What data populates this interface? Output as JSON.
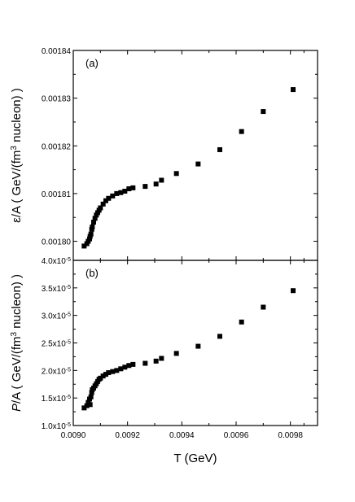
{
  "chart_data": [
    {
      "type": "scatter",
      "panel_label": "(a)",
      "ylabel": "ε/A  ( GeV/(fm3 nucleon) )",
      "ylabel_parts": {
        "sym": "ε",
        "pre": "/A  ( GeV/(fm",
        "sup": "3",
        "post": " nucleon) )"
      },
      "ylim": [
        0.001796,
        0.00184
      ],
      "yticks": [
        0.0018,
        0.00181,
        0.00182,
        0.00183,
        0.00184
      ],
      "ytick_labels": [
        "0.00180",
        "0.00181",
        "0.00182",
        "0.00183",
        "0.00184"
      ],
      "x": [
        0.00904,
        0.00905,
        0.009055,
        0.00906,
        0.009062,
        0.009065,
        0.009068,
        0.00907,
        0.009075,
        0.00908,
        0.009085,
        0.00909,
        0.009095,
        0.0091,
        0.00911,
        0.00912,
        0.00913,
        0.009145,
        0.00916,
        0.009175,
        0.00919,
        0.009205,
        0.00922,
        0.009265,
        0.009305,
        0.009325,
        0.00938,
        0.00946,
        0.00954,
        0.00962,
        0.0097,
        0.00981
      ],
      "y": [
        0.001799,
        0.0017995,
        0.0018,
        0.0018005,
        0.001801,
        0.0018015,
        0.0018025,
        0.001803,
        0.001804,
        0.0018048,
        0.0018055,
        0.001806,
        0.0018065,
        0.001807,
        0.0018078,
        0.0018085,
        0.001809,
        0.0018095,
        0.00181,
        0.0018102,
        0.0018105,
        0.001811,
        0.0018112,
        0.0018115,
        0.001812,
        0.0018128,
        0.0018142,
        0.0018162,
        0.0018192,
        0.001823,
        0.0018272,
        0.0018318
      ]
    },
    {
      "type": "scatter",
      "panel_label": "(b)",
      "ylabel": "P/A  ( GeV/(fm3 nucleon) )",
      "ylabel_parts": {
        "sym": "P",
        "pre": "/A  ( GeV/(fm",
        "sup": "3",
        "post": " nucleon) )"
      },
      "ylim": [
        1e-05,
        4e-05
      ],
      "yticks": [
        1e-05,
        1.5e-05,
        2e-05,
        2.5e-05,
        3e-05,
        3.5e-05,
        4e-05
      ],
      "ytick_labels": [
        {
          "m": "1.0x10",
          "e": "-5"
        },
        {
          "m": "1.5x10",
          "e": "-5"
        },
        {
          "m": "2.0x10",
          "e": "-5"
        },
        {
          "m": "2.5x10",
          "e": "-5"
        },
        {
          "m": "3.0x10",
          "e": "-5"
        },
        {
          "m": "3.5x10",
          "e": "-5"
        },
        {
          "m": "4.0x10",
          "e": "-5"
        }
      ],
      "x": [
        0.00904,
        0.00905,
        0.009055,
        0.00906,
        0.009062,
        0.009065,
        0.009068,
        0.00907,
        0.009075,
        0.00908,
        0.009085,
        0.00909,
        0.009095,
        0.0091,
        0.00911,
        0.00912,
        0.00913,
        0.009145,
        0.00916,
        0.009175,
        0.00919,
        0.009205,
        0.00922,
        0.009265,
        0.009305,
        0.009325,
        0.00938,
        0.00946,
        0.00954,
        0.00962,
        0.0097,
        0.00981
      ],
      "y": [
        1.32e-05,
        1.36e-05,
        1.42e-05,
        1.48e-05,
        1.38e-05,
        1.52e-05,
        1.6e-05,
        1.65e-05,
        1.68e-05,
        1.72e-05,
        1.76e-05,
        1.8e-05,
        1.84e-05,
        1.86e-05,
        1.9e-05,
        1.93e-05,
        1.96e-05,
        1.98e-05,
        2e-05,
        2.03e-05,
        2.06e-05,
        2.09e-05,
        2.11e-05,
        2.13e-05,
        2.17e-05,
        2.22e-05,
        2.31e-05,
        2.44e-05,
        2.62e-05,
        2.88e-05,
        3.15e-05,
        3.45e-05
      ]
    }
  ],
  "shared_x": {
    "xlabel": "T (GeV)",
    "xlim": [
      0.009,
      0.0099
    ],
    "xticks": [
      0.009,
      0.0092,
      0.0094,
      0.0096,
      0.0098
    ],
    "xtick_labels": [
      "0.0090",
      "0.0092",
      "0.0094",
      "0.0096",
      "0.0098"
    ]
  }
}
